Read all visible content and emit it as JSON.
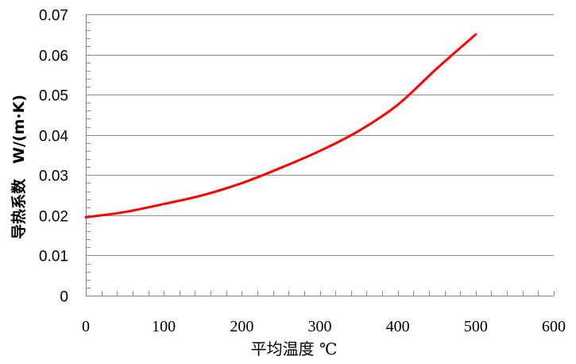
{
  "chart_data": {
    "type": "line",
    "title": "",
    "xlabel": "平均温度 ℃",
    "ylabel": "导热系数　W/(m·K)",
    "xlim": [
      0,
      600
    ],
    "ylim": [
      0,
      0.07
    ],
    "xticks": [
      "0",
      "100",
      "200",
      "300",
      "400",
      "500",
      "600"
    ],
    "yticks": [
      "0",
      "0.01",
      "0.02",
      "0.03",
      "0.04",
      "0.05",
      "0.06",
      "0.07"
    ],
    "grid": "horizontal",
    "legend": "none",
    "series": [
      {
        "color": "#ff0000",
        "x": [
          0,
          50,
          100,
          150,
          200,
          250,
          300,
          350,
          400,
          450,
          500
        ],
        "y": [
          0.0195,
          0.0208,
          0.0228,
          0.025,
          0.028,
          0.0318,
          0.036,
          0.041,
          0.0475,
          0.0565,
          0.065
        ]
      }
    ]
  }
}
